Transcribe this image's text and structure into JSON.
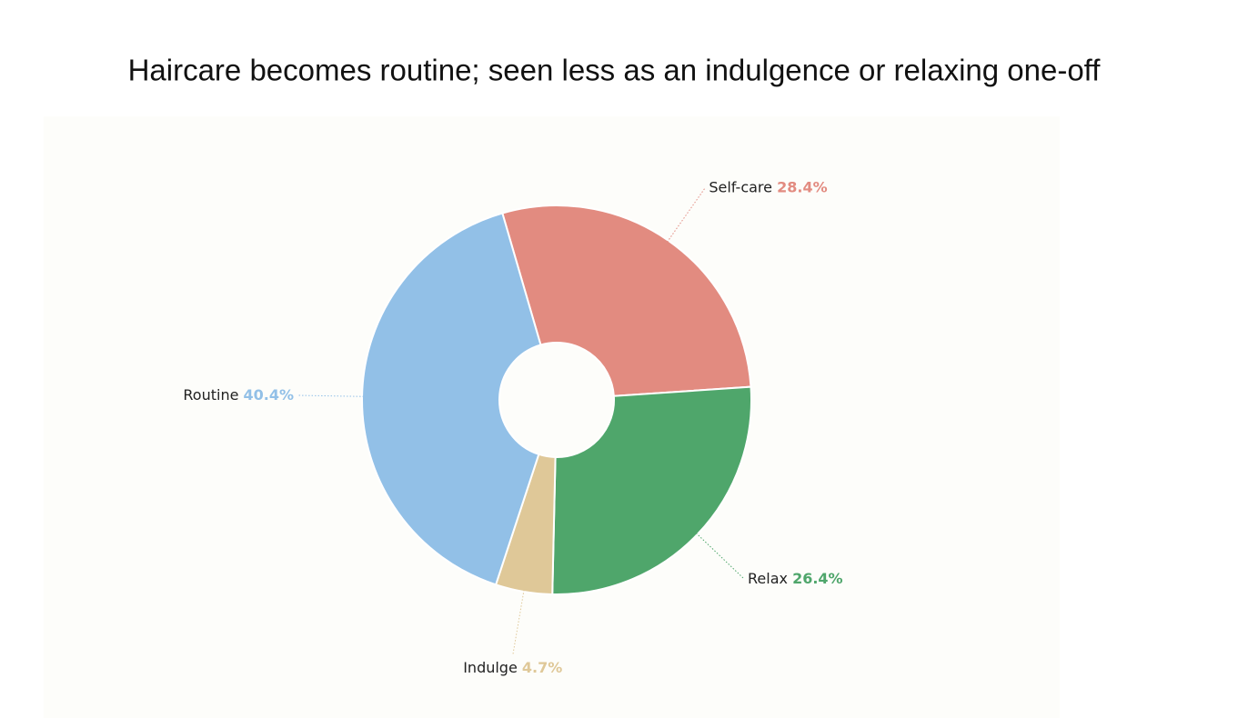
{
  "chart_data": {
    "type": "pie",
    "title": "Haircare becomes routine; seen less as an indulgence or relaxing one-off",
    "categories": [
      "Self-care",
      "Relax",
      "Indulge",
      "Routine"
    ],
    "values": [
      28.4,
      26.4,
      4.7,
      40.4
    ],
    "value_labels": [
      "28.4%",
      "26.4%",
      "4.7%",
      "40.4%"
    ],
    "colors": [
      "#e28b80",
      "#4fa66b",
      "#dfc898",
      "#92c0e7"
    ],
    "donut": true
  }
}
